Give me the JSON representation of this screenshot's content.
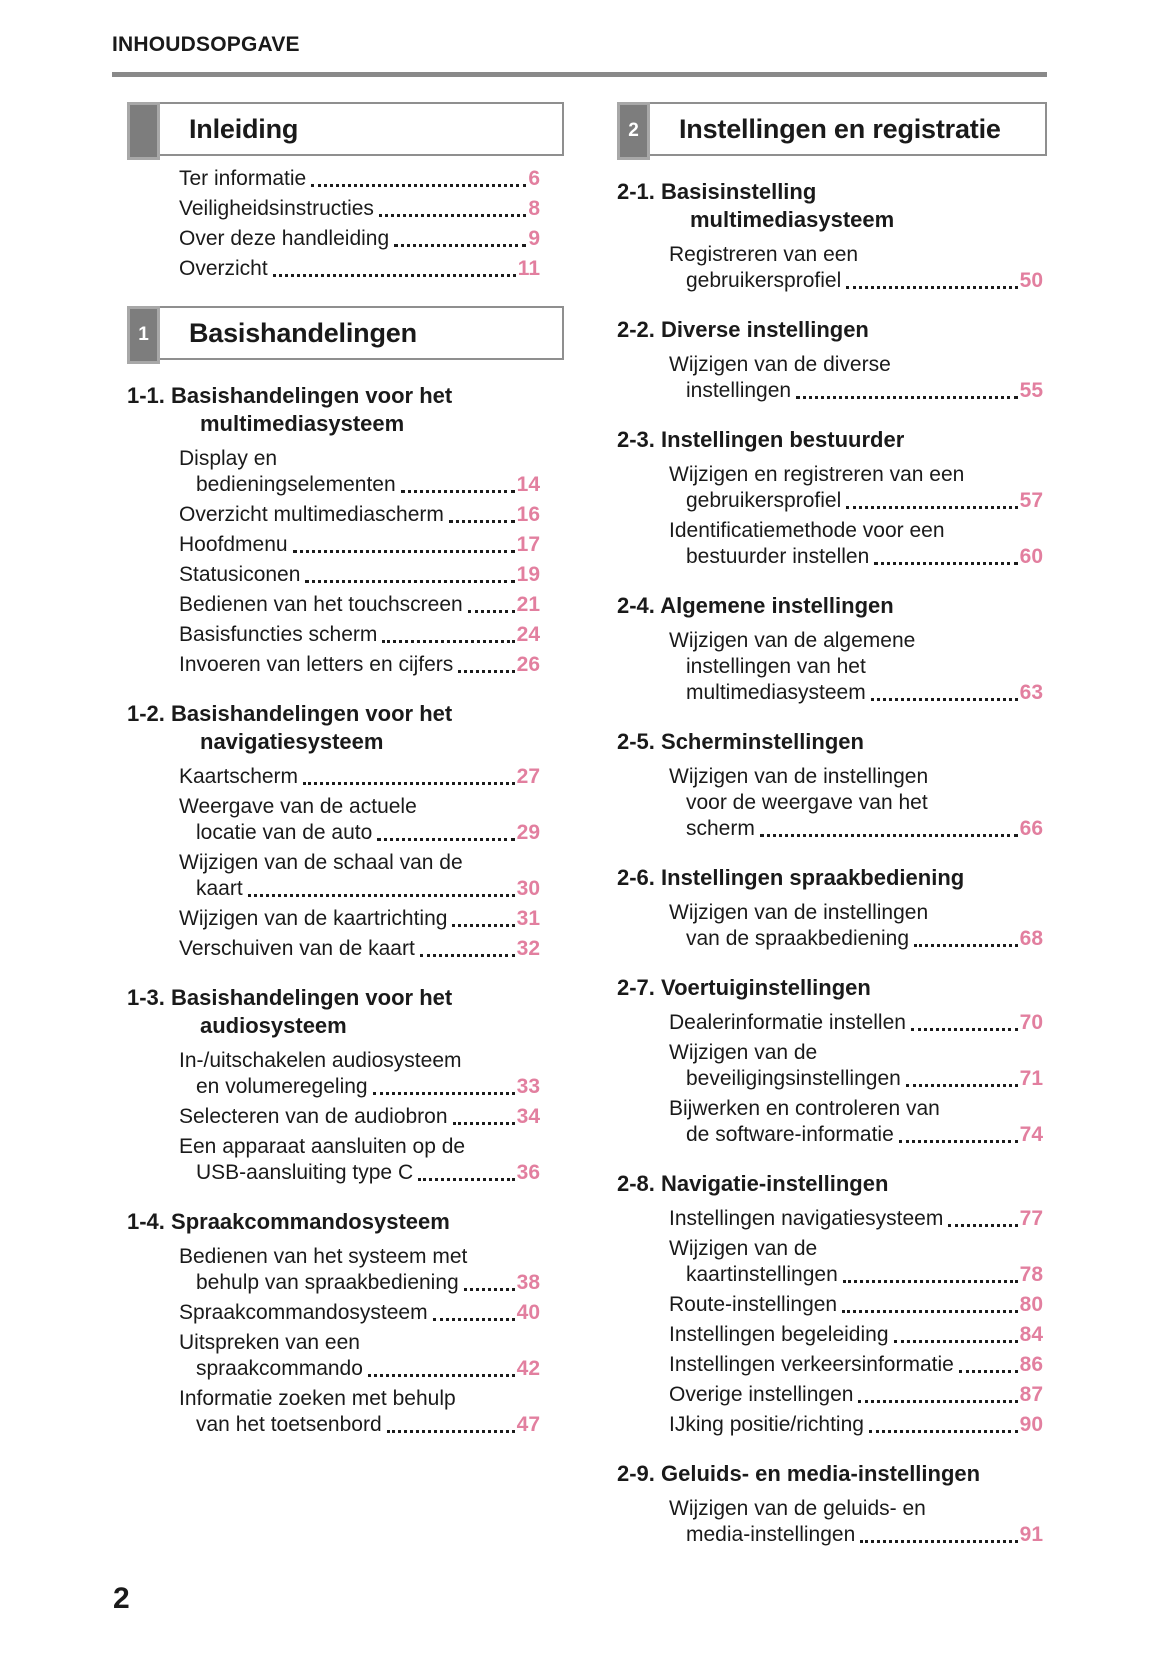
{
  "header": {
    "title": "INHOUDSOPGAVE"
  },
  "folio": {
    "page_number": "2"
  },
  "colors": {
    "accent_pink": "#e27f9f",
    "tab_gray": "#7d7d7d",
    "tab_border": "#a8a8a8",
    "box_border": "#8f8f8f",
    "rule_gray": "#898989"
  },
  "columns": [
    {
      "blocks": [
        {
          "tab": "",
          "title": "Inleiding",
          "sections": [
            {
              "heading": null,
              "entries": [
                {
                  "lines": [
                    "Ter informatie"
                  ],
                  "page": "6"
                },
                {
                  "lines": [
                    "Veiligheidsinstructies"
                  ],
                  "page": "8"
                },
                {
                  "lines": [
                    "Over deze handleiding"
                  ],
                  "page": "9"
                },
                {
                  "lines": [
                    "Overzicht"
                  ],
                  "page": "11"
                }
              ]
            }
          ]
        },
        {
          "tab": "1",
          "title": "Basishandelingen",
          "sections": [
            {
              "heading": {
                "num": "1-1.",
                "lines": [
                  "Basishandelingen voor het",
                  "multimediasysteem"
                ]
              },
              "entries": [
                {
                  "lines": [
                    "Display en",
                    "bedieningselementen"
                  ],
                  "page": "14"
                },
                {
                  "lines": [
                    "Overzicht multimediascherm"
                  ],
                  "page": "16"
                },
                {
                  "lines": [
                    "Hoofdmenu"
                  ],
                  "page": "17"
                },
                {
                  "lines": [
                    "Statusiconen"
                  ],
                  "page": "19"
                },
                {
                  "lines": [
                    "Bedienen van het touchscreen"
                  ],
                  "page": "21"
                },
                {
                  "lines": [
                    "Basisfuncties scherm"
                  ],
                  "page": "24"
                },
                {
                  "lines": [
                    "Invoeren van letters en cijfers"
                  ],
                  "page": "26"
                }
              ]
            },
            {
              "heading": {
                "num": "1-2.",
                "lines": [
                  "Basishandelingen voor het",
                  "navigatiesysteem"
                ]
              },
              "entries": [
                {
                  "lines": [
                    "Kaartscherm"
                  ],
                  "page": "27"
                },
                {
                  "lines": [
                    "Weergave van de actuele",
                    "locatie van de auto"
                  ],
                  "page": "29"
                },
                {
                  "lines": [
                    "Wijzigen van de schaal van de",
                    "kaart"
                  ],
                  "page": "30"
                },
                {
                  "lines": [
                    "Wijzigen van de kaartrichting"
                  ],
                  "page": "31"
                },
                {
                  "lines": [
                    "Verschuiven van de kaart"
                  ],
                  "page": "32"
                }
              ]
            },
            {
              "heading": {
                "num": "1-3.",
                "lines": [
                  "Basishandelingen voor het",
                  "audiosysteem"
                ]
              },
              "entries": [
                {
                  "lines": [
                    "In-/uitschakelen audiosysteem",
                    "en volumeregeling"
                  ],
                  "page": "33"
                },
                {
                  "lines": [
                    "Selecteren van de audiobron"
                  ],
                  "page": "34"
                },
                {
                  "lines": [
                    "Een apparaat aansluiten op de",
                    "USB-aansluiting type C"
                  ],
                  "page": "36"
                }
              ]
            },
            {
              "heading": {
                "num": "1-4.",
                "lines": [
                  "Spraakcommandosysteem"
                ]
              },
              "entries": [
                {
                  "lines": [
                    "Bedienen van het systeem met",
                    "behulp van spraakbediening"
                  ],
                  "page": "38"
                },
                {
                  "lines": [
                    "Spraakcommandosysteem"
                  ],
                  "page": "40"
                },
                {
                  "lines": [
                    "Uitspreken van een",
                    "spraakcommando"
                  ],
                  "page": "42"
                },
                {
                  "lines": [
                    "Informatie zoeken met behulp",
                    "van het toetsenbord"
                  ],
                  "page": "47"
                }
              ]
            }
          ]
        }
      ]
    },
    {
      "blocks": [
        {
          "tab": "2",
          "title": "Instellingen en registratie",
          "sections": [
            {
              "heading": {
                "num": "2-1.",
                "lines": [
                  "Basisinstelling",
                  "multimediasysteem"
                ]
              },
              "entries": [
                {
                  "lines": [
                    "Registreren van een",
                    "gebruikersprofiel"
                  ],
                  "page": "50"
                }
              ]
            },
            {
              "heading": {
                "num": "2-2.",
                "lines": [
                  "Diverse instellingen"
                ]
              },
              "entries": [
                {
                  "lines": [
                    "Wijzigen van de diverse",
                    "instellingen"
                  ],
                  "page": "55"
                }
              ]
            },
            {
              "heading": {
                "num": "2-3.",
                "lines": [
                  "Instellingen bestuurder"
                ]
              },
              "entries": [
                {
                  "lines": [
                    "Wijzigen en registreren van een",
                    "gebruikersprofiel"
                  ],
                  "page": "57"
                },
                {
                  "lines": [
                    "Identificatiemethode voor een",
                    "bestuurder instellen"
                  ],
                  "page": "60"
                }
              ]
            },
            {
              "heading": {
                "num": "2-4.",
                "lines": [
                  "Algemene instellingen"
                ]
              },
              "entries": [
                {
                  "lines": [
                    "Wijzigen van de algemene",
                    "instellingen van het",
                    "multimediasysteem"
                  ],
                  "page": "63"
                }
              ]
            },
            {
              "heading": {
                "num": "2-5.",
                "lines": [
                  "Scherminstellingen"
                ]
              },
              "entries": [
                {
                  "lines": [
                    "Wijzigen van de instellingen",
                    "voor de weergave van het",
                    "scherm"
                  ],
                  "page": "66"
                }
              ]
            },
            {
              "heading": {
                "num": "2-6.",
                "lines": [
                  "Instellingen spraakbediening"
                ]
              },
              "entries": [
                {
                  "lines": [
                    "Wijzigen van de instellingen",
                    "van de spraakbediening"
                  ],
                  "page": "68"
                }
              ]
            },
            {
              "heading": {
                "num": "2-7.",
                "lines": [
                  "Voertuiginstellingen"
                ]
              },
              "entries": [
                {
                  "lines": [
                    "Dealerinformatie instellen"
                  ],
                  "page": "70"
                },
                {
                  "lines": [
                    "Wijzigen van de",
                    "beveiligingsinstellingen"
                  ],
                  "page": "71"
                },
                {
                  "lines": [
                    "Bijwerken en controleren van",
                    "de software-informatie"
                  ],
                  "page": "74"
                }
              ]
            },
            {
              "heading": {
                "num": "2-8.",
                "lines": [
                  "Navigatie-instellingen"
                ]
              },
              "entries": [
                {
                  "lines": [
                    "Instellingen navigatiesysteem"
                  ],
                  "page": "77"
                },
                {
                  "lines": [
                    "Wijzigen van de",
                    "kaartinstellingen"
                  ],
                  "page": "78"
                },
                {
                  "lines": [
                    "Route-instellingen"
                  ],
                  "page": "80"
                },
                {
                  "lines": [
                    "Instellingen begeleiding"
                  ],
                  "page": "84"
                },
                {
                  "lines": [
                    "Instellingen verkeersinformatie"
                  ],
                  "page": "86"
                },
                {
                  "lines": [
                    "Overige instellingen"
                  ],
                  "page": "87"
                },
                {
                  "lines": [
                    "IJking positie/richting"
                  ],
                  "page": "90"
                }
              ]
            },
            {
              "heading": {
                "num": "2-9.",
                "lines": [
                  "Geluids- en media-instellingen"
                ]
              },
              "entries": [
                {
                  "lines": [
                    "Wijzigen van de geluids- en",
                    "media-instellingen"
                  ],
                  "page": "91"
                }
              ]
            }
          ]
        }
      ]
    }
  ]
}
